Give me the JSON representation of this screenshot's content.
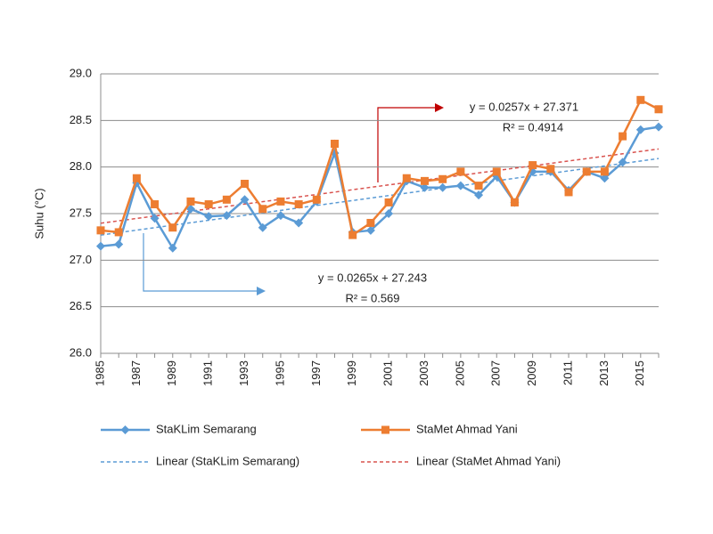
{
  "chart_data": {
    "type": "line",
    "y_label": "Suhu (°C)",
    "categories": [
      "1985",
      null,
      "1987",
      null,
      "1989",
      null,
      "1991",
      null,
      "1993",
      null,
      "1995",
      null,
      "1997",
      null,
      "1999",
      null,
      "2001",
      null,
      "2003",
      null,
      "2005",
      null,
      "2007",
      null,
      "2009",
      null,
      "2011",
      null,
      "2013",
      null,
      "2015",
      null
    ],
    "series": [
      {
        "name": "StaKLim Semarang",
        "color": "#5b9bd5",
        "marker": "diamond",
        "values": [
          27.15,
          27.17,
          27.83,
          27.45,
          27.13,
          27.55,
          27.47,
          27.48,
          27.65,
          27.35,
          27.48,
          27.4,
          27.63,
          28.15,
          27.3,
          27.32,
          27.5,
          27.85,
          27.78,
          27.78,
          27.8,
          27.7,
          27.9,
          27.62,
          27.95,
          27.95,
          27.75,
          27.95,
          27.88,
          28.05,
          28.4,
          28.43
        ]
      },
      {
        "name": "StaMet Ahmad Yani",
        "color": "#ed7d31",
        "marker": "square",
        "values": [
          27.32,
          27.3,
          27.88,
          27.6,
          27.35,
          27.63,
          27.6,
          27.65,
          27.82,
          27.55,
          27.63,
          27.6,
          27.65,
          28.25,
          27.27,
          27.4,
          27.62,
          27.88,
          27.85,
          27.87,
          27.95,
          27.8,
          27.95,
          27.62,
          28.02,
          27.98,
          27.73,
          27.95,
          27.95,
          28.33,
          28.72,
          28.62
        ]
      }
    ],
    "trendlines": [
      {
        "name": "Linear (StaKLim Semarang)",
        "color": "#5b9bd5",
        "slope": 0.0265,
        "intercept": 27.243,
        "equation": "y = 0.0265x + 27.243",
        "r2": "R² = 0.569"
      },
      {
        "name": "Linear (StaMet Ahmad Yani)",
        "color": "#d9534f",
        "slope": 0.0257,
        "intercept": 27.371,
        "equation": "y = 0.0257x + 27.371",
        "r2": "R² = 0.4914"
      }
    ],
    "ylim": [
      26,
      29
    ],
    "yticks": [
      {
        "value": 26,
        "label": "26.0"
      },
      {
        "value": 26.5,
        "label": "26.5"
      },
      {
        "value": 27,
        "label": "27.0"
      },
      {
        "value": 27.5,
        "label": "27.5"
      },
      {
        "value": 28,
        "label": "28.0"
      },
      {
        "value": 28.5,
        "label": "28.5"
      },
      {
        "value": 29,
        "label": "29.0"
      }
    ],
    "grid": true,
    "legend": "bottom"
  }
}
